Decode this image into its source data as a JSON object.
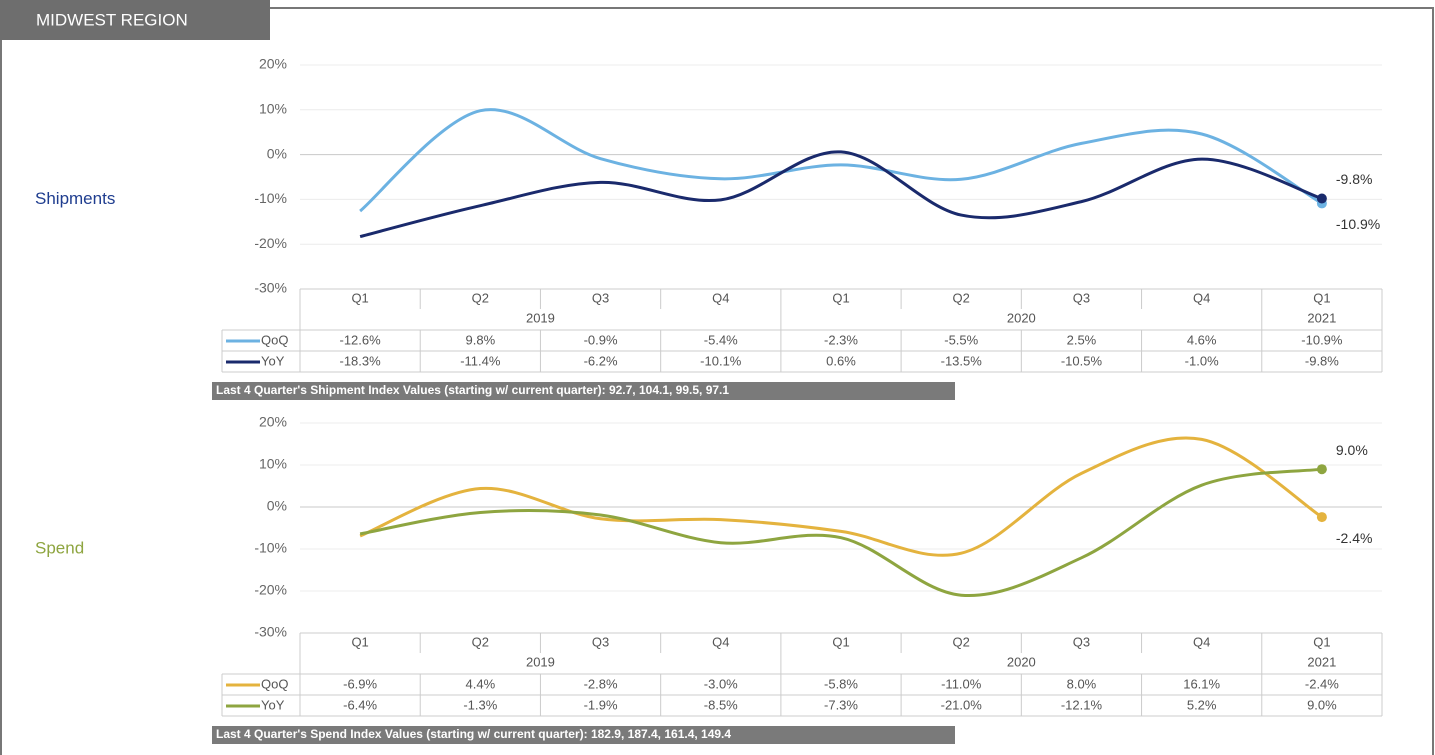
{
  "header": {
    "title": "MIDWEST REGION"
  },
  "chart_data": [
    {
      "type": "line",
      "title": "Shipments",
      "categories": [
        "Q1",
        "Q2",
        "Q3",
        "Q4",
        "Q1",
        "Q2",
        "Q3",
        "Q4",
        "Q1"
      ],
      "years": [
        "2019",
        "2019",
        "2019",
        "2019",
        "2020",
        "2020",
        "2020",
        "2020",
        "2021"
      ],
      "series": [
        {
          "name": "QoQ",
          "color": "#6cb2e2",
          "values": [
            -12.6,
            9.8,
            -0.9,
            -5.4,
            -2.3,
            -5.5,
            2.5,
            4.6,
            -10.9
          ],
          "value_labels": [
            "-12.6%",
            "9.8%",
            "-0.9%",
            "-5.4%",
            "-2.3%",
            "-5.5%",
            "2.5%",
            "4.6%",
            "-10.9%"
          ]
        },
        {
          "name": "YoY",
          "color": "#1a2a6c",
          "values": [
            -18.3,
            -11.4,
            -6.2,
            -10.1,
            0.6,
            -13.5,
            -10.5,
            -1.0,
            -9.8
          ],
          "value_labels": [
            "-18.3%",
            "-11.4%",
            "-6.2%",
            "-10.1%",
            "0.6%",
            "-13.5%",
            "-10.5%",
            "-1.0%",
            "-9.8%"
          ]
        }
      ],
      "ylim": [
        -30,
        20
      ],
      "yticks": [
        {
          "value": -30,
          "label": "-30%"
        },
        {
          "value": -20,
          "label": "-20%"
        },
        {
          "value": -10,
          "label": "-10%"
        },
        {
          "value": 0,
          "label": "0%"
        },
        {
          "value": 10,
          "label": "10%"
        },
        {
          "value": 20,
          "label": "20%"
        }
      ],
      "grid": true,
      "title_color": "#1f3d8f",
      "footnote": "Last 4 Quarter's Shipment Index Values (starting w/ current quarter): 92.7, 104.1, 99.5, 97.1"
    },
    {
      "type": "line",
      "title": "Spend",
      "categories": [
        "Q1",
        "Q2",
        "Q3",
        "Q4",
        "Q1",
        "Q2",
        "Q3",
        "Q4",
        "Q1"
      ],
      "years": [
        "2019",
        "2019",
        "2019",
        "2019",
        "2020",
        "2020",
        "2020",
        "2020",
        "2021"
      ],
      "series": [
        {
          "name": "QoQ",
          "color": "#e4b33e",
          "values": [
            -6.9,
            4.4,
            -2.8,
            -3.0,
            -5.8,
            -11.0,
            8.0,
            16.1,
            -2.4
          ],
          "value_labels": [
            "-6.9%",
            "4.4%",
            "-2.8%",
            "-3.0%",
            "-5.8%",
            "-11.0%",
            "8.0%",
            "16.1%",
            "-2.4%"
          ]
        },
        {
          "name": "YoY",
          "color": "#8ea540",
          "values": [
            -6.4,
            -1.3,
            -1.9,
            -8.5,
            -7.3,
            -21.0,
            -12.1,
            5.2,
            9.0
          ],
          "value_labels": [
            "-6.4%",
            "-1.3%",
            "-1.9%",
            "-8.5%",
            "-7.3%",
            "-21.0%",
            "-12.1%",
            "5.2%",
            "9.0%"
          ]
        }
      ],
      "ylim": [
        -30,
        20
      ],
      "yticks": [
        {
          "value": -30,
          "label": "-30%"
        },
        {
          "value": -20,
          "label": "-20%"
        },
        {
          "value": -10,
          "label": "-10%"
        },
        {
          "value": 0,
          "label": "0%"
        },
        {
          "value": 10,
          "label": "10%"
        },
        {
          "value": 20,
          "label": "20%"
        }
      ],
      "grid": true,
      "title_color": "#8ea540",
      "footnote": "Last 4 Quarter's Spend Index Values (starting w/ current quarter): 182.9, 187.4, 161.4, 149.4"
    }
  ]
}
